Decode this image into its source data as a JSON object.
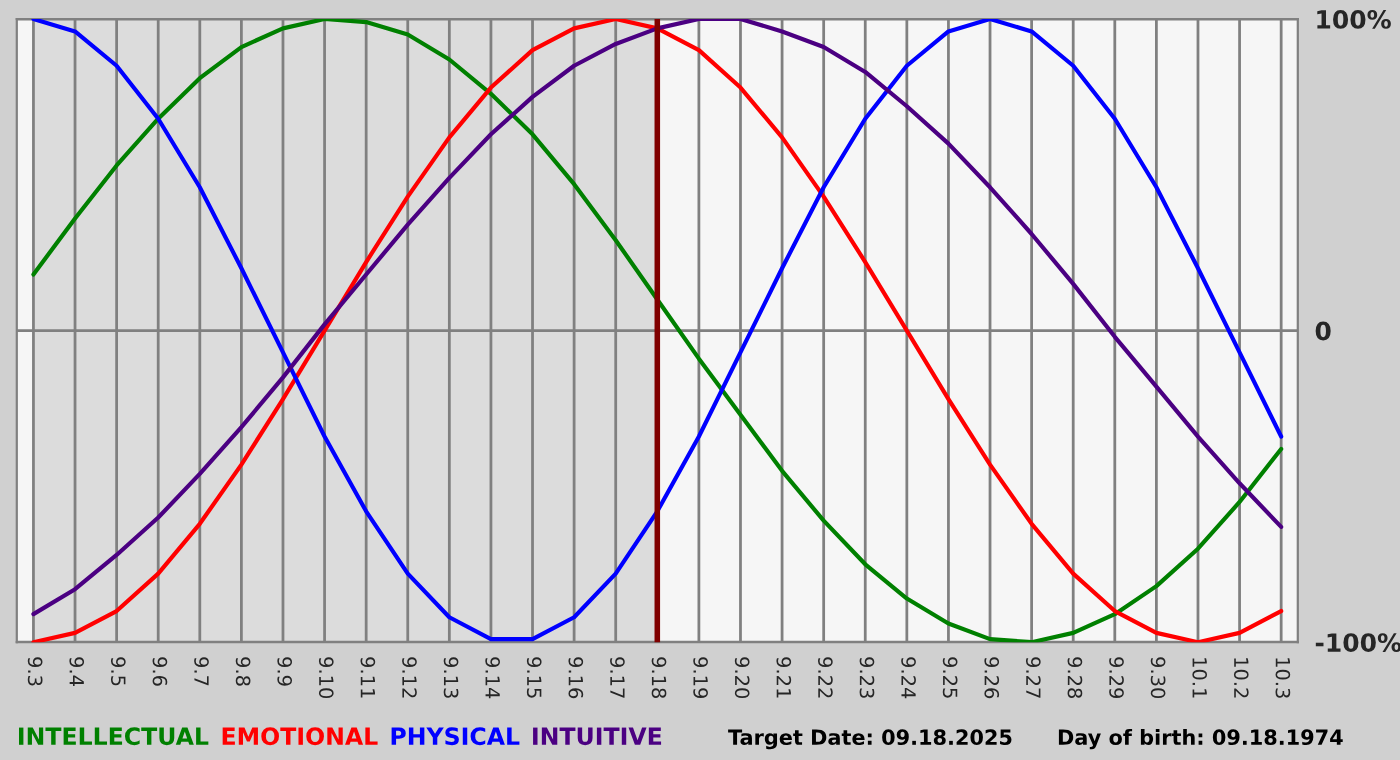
{
  "chart_data": {
    "type": "line",
    "categories": [
      "9.3",
      "9.4",
      "9.5",
      "9.6",
      "9.7",
      "9.8",
      "9.9",
      "9.10",
      "9.11",
      "9.12",
      "9.13",
      "9.14",
      "9.15",
      "9.16",
      "9.17",
      "9.18",
      "9.19",
      "9.20",
      "9.21",
      "9.22",
      "9.23",
      "9.24",
      "9.25",
      "9.26",
      "9.27",
      "9.28",
      "9.29",
      "9.30",
      "10.1",
      "10.2",
      "10.3"
    ],
    "series": [
      {
        "name": "INTELLECTUAL",
        "color": "#008000",
        "values": [
          18,
          36,
          53,
          68,
          81,
          91,
          97,
          100,
          99,
          95,
          87,
          76,
          63,
          47,
          29,
          10,
          -9,
          -27,
          -45,
          -61,
          -75,
          -86,
          -94,
          -99,
          -100,
          -97,
          -91,
          -82,
          -70,
          -55,
          -38
        ]
      },
      {
        "name": "EMOTIONAL",
        "color": "#ff0000",
        "values": [
          -100,
          -97,
          -90,
          -78,
          -62,
          -43,
          -22,
          0,
          22,
          43,
          62,
          78,
          90,
          97,
          100,
          97,
          90,
          78,
          62,
          43,
          22,
          0,
          -22,
          -43,
          -62,
          -78,
          -90,
          -97,
          -100,
          -97,
          -90
        ]
      },
      {
        "name": "PHYSICAL",
        "color": "#0000ff",
        "values": [
          100,
          96,
          85,
          68,
          46,
          20,
          -7,
          -34,
          -58,
          -78,
          -92,
          -99,
          -99,
          -92,
          -78,
          -58,
          -34,
          -7,
          20,
          46,
          68,
          85,
          96,
          100,
          96,
          85,
          68,
          46,
          20,
          -7,
          -34
        ]
      },
      {
        "name": "INTUITIVE",
        "color": "#4b0082",
        "values": [
          -91,
          -83,
          -72,
          -60,
          -46,
          -31,
          -15,
          2,
          18,
          34,
          49,
          63,
          75,
          85,
          92,
          97,
          100,
          100,
          96,
          91,
          83,
          72,
          60,
          46,
          31,
          15,
          -2,
          -18,
          -34,
          -49,
          -63
        ]
      }
    ],
    "ylim": [
      -100,
      100
    ],
    "yticks": [
      {
        "value": 100,
        "label": "100%"
      },
      0,
      {
        "value": -100,
        "label": "-100%"
      }
    ],
    "grid": true,
    "legend": "bottom",
    "marker": "none",
    "line_style": "solid",
    "ref_lines": [
      {
        "axis": "x",
        "value": "9.18",
        "color": "#800000"
      }
    ],
    "bands": [
      {
        "axis": "x",
        "from": "9.3",
        "to": "9.18",
        "color": "#dcdcdc"
      }
    ],
    "annotations": [
      "Target Date: 09.18.2025",
      "Day of birth: 09.18.1974"
    ]
  }
}
